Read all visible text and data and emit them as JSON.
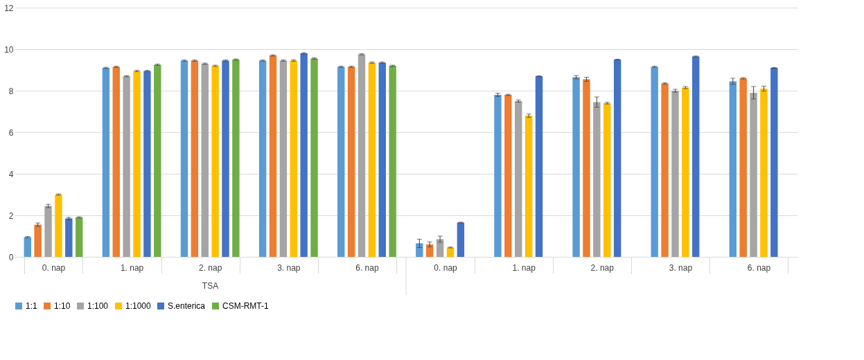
{
  "chart_data": {
    "type": "bar",
    "categories": [
      "0. nap",
      "1. nap",
      "2. nap",
      "3. nap",
      "6. nap",
      "0. nap",
      "1. nap",
      "2. nap",
      "3. nap",
      "6. nap"
    ],
    "series": [
      {
        "name": "1:1",
        "color": "#5b9bd5",
        "values": [
          0.95,
          9.1,
          9.45,
          9.45,
          9.15,
          0.65,
          7.8,
          8.65,
          9.15,
          8.45
        ],
        "errors": [
          0.03,
          0.03,
          0.03,
          0.03,
          0.03,
          0.2,
          0.08,
          0.08,
          0.03,
          0.15
        ]
      },
      {
        "name": "1:10",
        "color": "#ed7d31",
        "values": [
          1.55,
          9.15,
          9.45,
          9.7,
          9.15,
          0.6,
          7.8,
          8.55,
          8.35,
          8.6
        ],
        "errors": [
          0.08,
          0.03,
          0.03,
          0.03,
          0.03,
          0.12,
          0.03,
          0.1,
          0.03,
          0.03
        ]
      },
      {
        "name": "1:100",
        "color": "#a5a5a5",
        "values": [
          2.45,
          8.7,
          9.3,
          9.45,
          9.75,
          0.85,
          7.5,
          7.45,
          8.0,
          7.9
        ],
        "errors": [
          0.08,
          0.03,
          0.03,
          0.03,
          0.03,
          0.15,
          0.05,
          0.25,
          0.07,
          0.3
        ]
      },
      {
        "name": "1:1000",
        "color": "#ffc000",
        "values": [
          3.0,
          8.95,
          9.2,
          9.45,
          9.35,
          0.45,
          6.8,
          7.4,
          8.15,
          8.1
        ],
        "errors": [
          0.03,
          0.03,
          0.03,
          0.03,
          0.03,
          0.02,
          0.08,
          0.04,
          0.05,
          0.12
        ]
      },
      {
        "name": "S.enterica",
        "color": "#4472c4",
        "values": [
          1.85,
          8.95,
          9.45,
          9.8,
          9.35,
          1.65,
          8.7,
          9.5,
          9.65,
          9.1
        ],
        "errors": [
          0.05,
          0.03,
          0.03,
          0.03,
          0.03,
          0.02,
          0.02,
          0.02,
          0.02,
          0.02
        ]
      },
      {
        "name": "CSM-RMT-1",
        "color": "#70ad47",
        "values": [
          1.9,
          9.25,
          9.5,
          9.55,
          9.2,
          null,
          null,
          null,
          null,
          null
        ],
        "errors": [
          0.03,
          0.03,
          0.03,
          0.03,
          0.03,
          null,
          null,
          null,
          null,
          null
        ]
      }
    ],
    "annotations": [
      "TSA"
    ],
    "ylim": [
      0,
      12
    ],
    "yticks": [
      0,
      2,
      4,
      6,
      8,
      10,
      12
    ],
    "grid": "y",
    "legend": "bottom"
  }
}
